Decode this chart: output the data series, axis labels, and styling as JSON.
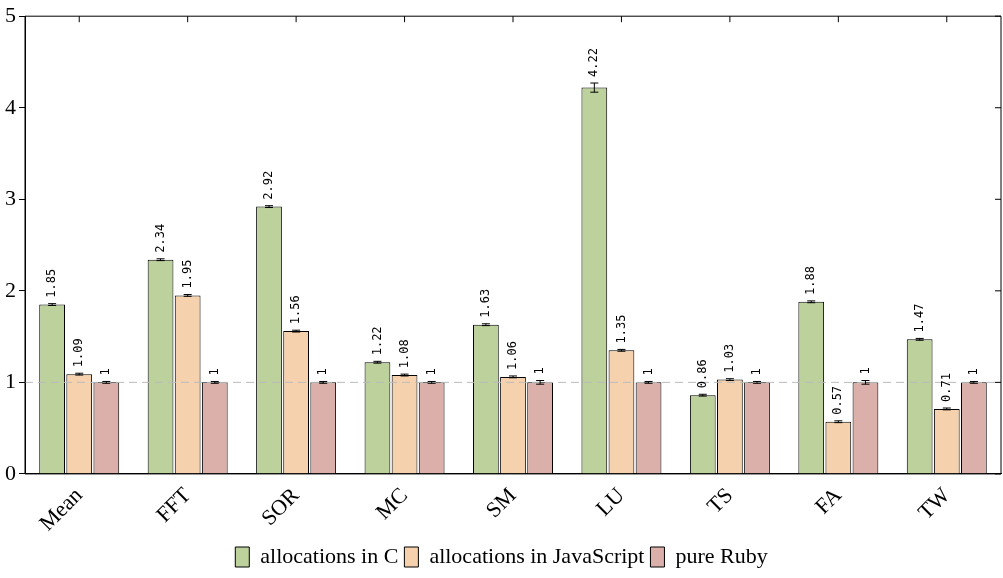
{
  "chart_data": {
    "type": "bar",
    "categories": [
      "Mean",
      "FFT",
      "SOR",
      "MC",
      "SM",
      "LU",
      "TS",
      "FA",
      "TW"
    ],
    "series": [
      {
        "name": "allocations in C",
        "color": "#bcd19c",
        "values": [
          1.85,
          2.34,
          2.92,
          1.22,
          1.63,
          4.22,
          0.86,
          1.88,
          1.47
        ],
        "errors": [
          0.01,
          0.01,
          0.01,
          0.01,
          0.01,
          0.05,
          0.01,
          0.01,
          0.01
        ]
      },
      {
        "name": "allocations in JavaScript",
        "color": "#f5d1ad",
        "values": [
          1.09,
          1.95,
          1.56,
          1.08,
          1.06,
          1.35,
          1.03,
          0.57,
          0.71
        ],
        "errors": [
          0.01,
          0.01,
          0.01,
          0.01,
          0.01,
          0.01,
          0.01,
          0.01,
          0.01
        ]
      },
      {
        "name": "pure Ruby",
        "color": "#dbb0aa",
        "values": [
          1,
          1,
          1,
          1,
          1,
          1,
          1,
          1,
          1
        ],
        "errors": [
          0.01,
          0.01,
          0.01,
          0.01,
          0.02,
          0.01,
          0.01,
          0.02,
          0.01
        ]
      }
    ],
    "ylim": [
      0,
      5
    ],
    "yticks": [
      0,
      1,
      2,
      3,
      4,
      5
    ],
    "grid": false,
    "legend": "bottom",
    "data_labels": true,
    "ref_lines": [
      {
        "axis": "y",
        "value": 1,
        "color": "#bbbbbb",
        "line_style": "dashed"
      }
    ]
  }
}
